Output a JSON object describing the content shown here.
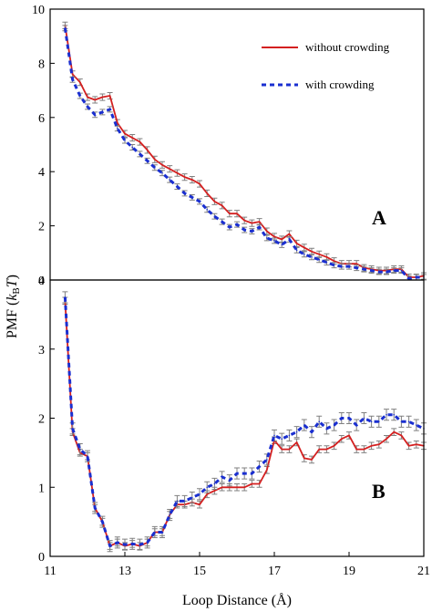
{
  "figure": {
    "ylabel": "PMF (kBT)",
    "ylabel_parts": {
      "prefix": "PMF (",
      "k": "k",
      "sub": "B",
      "T": "T",
      "suffix": ")"
    },
    "xlabel": "Loop Distance (Å)"
  },
  "colors": {
    "without_crowding": "#d42020",
    "with_crowding": "#1a2fd0",
    "errorbar": "#808080",
    "axis": "#000000"
  },
  "chart_data": [
    {
      "type": "line",
      "panel_label": "A",
      "xlim": [
        11,
        21
      ],
      "ylim": [
        0,
        10
      ],
      "yticks": [
        "0",
        "2",
        "4",
        "6",
        "8",
        "10"
      ],
      "legend_position": "top-right",
      "series": [
        {
          "name": "without crowding",
          "style": "solid",
          "x": [
            11.4,
            11.6,
            11.8,
            12.0,
            12.2,
            12.4,
            12.6,
            12.8,
            13.0,
            13.2,
            13.4,
            13.6,
            13.8,
            14.0,
            14.2,
            14.4,
            14.6,
            14.8,
            15.0,
            15.2,
            15.4,
            15.6,
            15.8,
            16.0,
            16.2,
            16.4,
            16.6,
            16.8,
            17.0,
            17.2,
            17.4,
            17.6,
            17.8,
            18.0,
            18.2,
            18.4,
            18.6,
            18.8,
            19.0,
            19.2,
            19.4,
            19.6,
            19.8,
            20.0,
            20.2,
            20.4,
            20.6,
            20.8,
            21.0
          ],
          "y": [
            9.4,
            7.6,
            7.3,
            6.75,
            6.65,
            6.75,
            6.8,
            5.8,
            5.4,
            5.25,
            5.1,
            4.8,
            4.45,
            4.25,
            4.1,
            3.95,
            3.8,
            3.7,
            3.55,
            3.2,
            2.9,
            2.75,
            2.45,
            2.45,
            2.2,
            2.1,
            2.15,
            1.8,
            1.6,
            1.5,
            1.7,
            1.35,
            1.2,
            1.05,
            0.95,
            0.85,
            0.7,
            0.6,
            0.6,
            0.6,
            0.45,
            0.4,
            0.35,
            0.35,
            0.4,
            0.4,
            0.1,
            0.1,
            0.15
          ],
          "error": 0.12
        },
        {
          "name": "with crowding",
          "style": "dashed",
          "x": [
            11.4,
            11.6,
            11.8,
            12.0,
            12.2,
            12.4,
            12.6,
            12.8,
            13.0,
            13.2,
            13.4,
            13.6,
            13.8,
            14.0,
            14.2,
            14.4,
            14.6,
            14.8,
            15.0,
            15.2,
            15.4,
            15.6,
            15.8,
            16.0,
            16.2,
            16.4,
            16.6,
            16.8,
            17.0,
            17.2,
            17.4,
            17.6,
            17.8,
            18.0,
            18.2,
            18.4,
            18.6,
            18.8,
            19.0,
            19.2,
            19.4,
            19.6,
            19.8,
            20.0,
            20.2,
            20.4,
            20.6,
            20.8,
            21.0
          ],
          "y": [
            9.3,
            7.4,
            6.8,
            6.4,
            6.1,
            6.2,
            6.3,
            5.6,
            5.15,
            4.9,
            4.65,
            4.4,
            4.15,
            3.95,
            3.7,
            3.45,
            3.2,
            3.05,
            2.9,
            2.6,
            2.35,
            2.15,
            1.95,
            2.05,
            1.85,
            1.8,
            1.95,
            1.55,
            1.45,
            1.3,
            1.5,
            1.1,
            0.95,
            0.85,
            0.75,
            0.65,
            0.55,
            0.5,
            0.5,
            0.45,
            0.4,
            0.35,
            0.3,
            0.3,
            0.35,
            0.35,
            0.05,
            0.1,
            0.1
          ],
          "error": 0.1
        }
      ]
    },
    {
      "type": "line",
      "panel_label": "B",
      "xlim": [
        11,
        21
      ],
      "ylim": [
        0,
        4
      ],
      "xticks": [
        "11",
        "13",
        "15",
        "17",
        "19",
        "21"
      ],
      "yticks": [
        "0",
        "1",
        "2",
        "3",
        "4"
      ],
      "series": [
        {
          "name": "without crowding",
          "style": "solid",
          "x": [
            11.4,
            11.6,
            11.8,
            12.0,
            12.2,
            12.4,
            12.6,
            12.8,
            13.0,
            13.2,
            13.4,
            13.6,
            13.8,
            14.0,
            14.2,
            14.4,
            14.6,
            14.8,
            15.0,
            15.2,
            15.4,
            15.6,
            15.8,
            16.0,
            16.2,
            16.4,
            16.6,
            16.8,
            17.0,
            17.2,
            17.4,
            17.6,
            17.8,
            18.0,
            18.2,
            18.4,
            18.6,
            18.8,
            19.0,
            19.2,
            19.4,
            19.6,
            19.8,
            20.0,
            20.2,
            20.4,
            20.6,
            20.8,
            21.0
          ],
          "y": [
            3.7,
            1.8,
            1.5,
            1.45,
            0.7,
            0.5,
            0.15,
            0.2,
            0.15,
            0.18,
            0.15,
            0.2,
            0.35,
            0.35,
            0.6,
            0.75,
            0.75,
            0.78,
            0.75,
            0.9,
            0.95,
            1.0,
            1.0,
            1.0,
            1.0,
            1.05,
            1.05,
            1.25,
            1.68,
            1.55,
            1.55,
            1.65,
            1.42,
            1.4,
            1.55,
            1.55,
            1.6,
            1.7,
            1.75,
            1.55,
            1.55,
            1.6,
            1.62,
            1.7,
            1.8,
            1.75,
            1.6,
            1.62,
            1.6
          ],
          "error": 0.05
        },
        {
          "name": "with crowding",
          "style": "dashed",
          "x": [
            11.4,
            11.6,
            11.8,
            12.0,
            12.2,
            12.4,
            12.6,
            12.8,
            13.0,
            13.2,
            13.4,
            13.6,
            13.8,
            14.0,
            14.2,
            14.4,
            14.6,
            14.8,
            15.0,
            15.2,
            15.4,
            15.6,
            15.8,
            16.0,
            16.2,
            16.4,
            16.6,
            16.8,
            17.0,
            17.2,
            17.4,
            17.6,
            17.8,
            18.0,
            18.2,
            18.4,
            18.6,
            18.8,
            19.0,
            19.2,
            19.4,
            19.6,
            19.8,
            20.0,
            20.2,
            20.4,
            20.6,
            20.8,
            21.0
          ],
          "y": [
            3.75,
            1.85,
            1.55,
            1.45,
            0.7,
            0.5,
            0.15,
            0.2,
            0.17,
            0.18,
            0.17,
            0.2,
            0.35,
            0.35,
            0.6,
            0.8,
            0.8,
            0.85,
            0.9,
            1.0,
            1.05,
            1.15,
            1.1,
            1.2,
            1.2,
            1.2,
            1.3,
            1.4,
            1.75,
            1.7,
            1.75,
            1.8,
            1.9,
            1.8,
            1.95,
            1.85,
            1.9,
            2.0,
            2.0,
            1.9,
            2.0,
            1.95,
            1.95,
            2.05,
            2.05,
            1.95,
            1.95,
            1.9,
            1.85
          ],
          "error": 0.08
        }
      ]
    }
  ]
}
